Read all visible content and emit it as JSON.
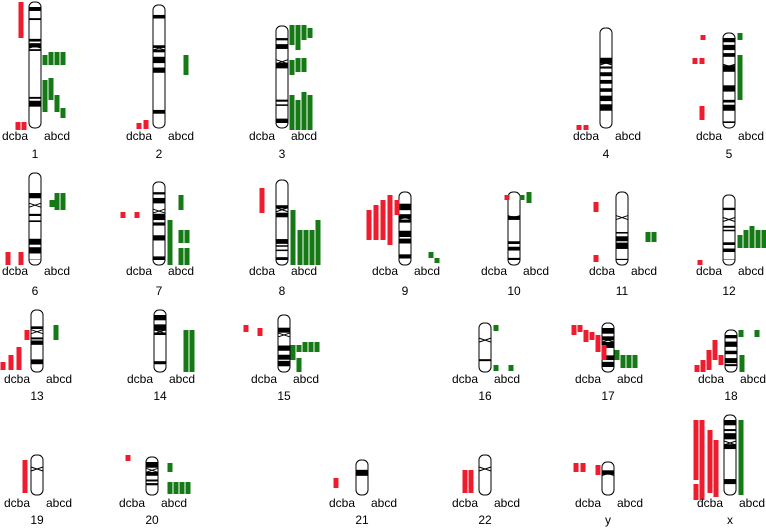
{
  "chromosomes": [
    {
      "label": "1",
      "left": "dcba",
      "right": "abcd"
    },
    {
      "label": "2",
      "left": "dcba",
      "right": "abcd"
    },
    {
      "label": "3",
      "left": "dcba",
      "right": "abcd"
    },
    {
      "label": "4",
      "left": "dcba",
      "right": "abcd"
    },
    {
      "label": "5",
      "left": "dcba",
      "right": "abcd"
    },
    {
      "label": "6",
      "left": "dcba",
      "right": "abcd"
    },
    {
      "label": "7",
      "left": "dcba",
      "right": "abcd"
    },
    {
      "label": "8",
      "left": "dcba",
      "right": "abcd"
    },
    {
      "label": "9",
      "left": "dcba",
      "right": "abcd"
    },
    {
      "label": "10",
      "left": "dcba",
      "right": "abcd"
    },
    {
      "label": "11",
      "left": "dcba",
      "right": "abcd"
    },
    {
      "label": "12",
      "left": "dcba",
      "right": "abcd"
    },
    {
      "label": "13",
      "left": "dcba",
      "right": "abcd"
    },
    {
      "label": "14",
      "left": "dcba",
      "right": "abcd"
    },
    {
      "label": "15",
      "left": "dcba",
      "right": "abcd"
    },
    {
      "label": "16",
      "left": "dcba",
      "right": "abcd"
    },
    {
      "label": "17",
      "left": "dcba",
      "right": "abcd"
    },
    {
      "label": "18",
      "left": "dcba",
      "right": "abcd"
    },
    {
      "label": "19",
      "left": "dcba",
      "right": "abcd"
    },
    {
      "label": "20",
      "left": "dcba",
      "right": "abcd"
    },
    {
      "label": "21",
      "left": "dcba",
      "right": "abcd"
    },
    {
      "label": "22",
      "left": "dcba",
      "right": "abcd"
    },
    {
      "label": "y",
      "left": "dcba",
      "right": "abcd"
    },
    {
      "label": "x",
      "left": "dcba",
      "right": "abcd"
    }
  ]
}
